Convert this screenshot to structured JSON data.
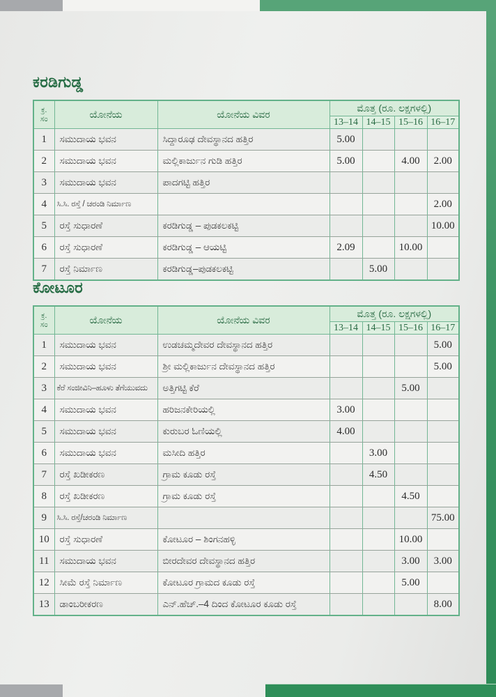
{
  "accents": {
    "top_bar_green": "#57a478",
    "side_band_green": "#2e8c58",
    "bottom_bar_green": "#2f8e59",
    "corner_gray": "#a7a9ac",
    "table_border_green": "#72b694",
    "table_header_bg": "#d8ecdb",
    "heading_text_green": "#266c44"
  },
  "sections": [
    {
      "id": "karadigudda",
      "heading": "ಕರಡಿಗುಡ್ಡ",
      "table": {
        "header": {
          "sl_line1": "ಕ್ರ.",
          "sl_line2": "ಸಂ",
          "scheme": "ಯೋನೆಯ",
          "details": "ಯೋನೆಯ ವಿವರ",
          "amount": "ಮೊತ್ತ (ರೂ. ಲಕ್ಷಗಳಲ್ಲಿ)",
          "years": [
            "13–14",
            "14–15",
            "15–16",
            "16–17"
          ]
        },
        "rows": [
          {
            "no": "1",
            "scheme": "ಸಮುದಾಯ ಭವನ",
            "details": "ಸಿದ್ದಾರೂಢ ದೇವಸ್ಥಾನದ ಹತ್ತಿರ",
            "values": [
              "5.00",
              "",
              "",
              ""
            ]
          },
          {
            "no": "2",
            "scheme": "ಸಮುದಾಯ ಭವನ",
            "details": "ಮಲ್ಲಿಕಾರ್ಜುನ ಗುಡಿ ಹತ್ತಿರ",
            "values": [
              "5.00",
              "",
              "4.00",
              "2.00"
            ]
          },
          {
            "no": "3",
            "scheme": "ಸಮುದಾಯ ಭವನ",
            "details": "ಪಾದಗಟ್ಟಿ ಹತ್ತಿರ",
            "values": [
              "",
              "",
              "",
              ""
            ]
          },
          {
            "no": "4",
            "scheme": "ಸಿ.ಸಿ. ರಸ್ತೆ / ಚರಂಡಿ ನಿರ್ಮಾಣ",
            "details": "",
            "values": [
              "",
              "",
              "",
              "2.00"
            ]
          },
          {
            "no": "5",
            "scheme": "ರಸ್ತೆ ಸುಧಾರಣೆ",
            "details": "ಕರಡಿಗುಡ್ಡ – ಪುಡಕಲಕಟ್ಟಿ",
            "values": [
              "",
              "",
              "",
              "10.00"
            ]
          },
          {
            "no": "6",
            "scheme": "ರಸ್ತೆ ಸುಧಾರಣೆ",
            "details": "ಕರಡಿಗುಡ್ಡ – ಆಯಟ್ಟಿ",
            "values": [
              "2.09",
              "",
              "10.00",
              ""
            ]
          },
          {
            "no": "7",
            "scheme": "ರಸ್ತೆ ನಿರ್ಮಾಣ",
            "details": "ಕರಡಿಗುಡ್ಡ–ಪುಡಕಲಕಟ್ಟಿ",
            "values": [
              "",
              "5.00",
              "",
              ""
            ]
          }
        ]
      }
    },
    {
      "id": "kotur",
      "heading": "ಕೋಟೂರ",
      "table": {
        "header": {
          "sl_line1": "ಕ್ರ.",
          "sl_line2": "ಸಂ",
          "scheme": "ಯೋನೆಯ",
          "details": "ಯೋನೆಯ ವಿವರ",
          "amount": "ಮೊತ್ತ (ರೂ. ಲಕ್ಷಗಳಲ್ಲಿ)",
          "years": [
            "13–14",
            "14–15",
            "15–16",
            "16–17"
          ]
        },
        "rows": [
          {
            "no": "1",
            "scheme": "ಸಮುದಾಯ ಭವನ",
            "details": "ಉಡಚಮ್ಮದೇವರ ದೇವಸ್ಥಾನದ ಹತ್ತಿರ",
            "values": [
              "",
              "",
              "",
              "5.00"
            ]
          },
          {
            "no": "2",
            "scheme": "ಸಮುದಾಯ ಭವನ",
            "details": "ಶ್ರೀ ಮಲ್ಲಿಕಾರ್ಜುನ ದೇವಸ್ಥಾನದ ಹತ್ತಿರ",
            "values": [
              "",
              "",
              "",
              "5.00"
            ]
          },
          {
            "no": "3",
            "scheme": "ಕೆರೆ ಸಂಜೀವಿನಿ–ಹೂಳು ತೆಗೆಯುವದು",
            "details": "ಅತ್ತಿಗಟ್ಟಿ ಕೆರೆ",
            "values": [
              "",
              "",
              "5.00",
              ""
            ]
          },
          {
            "no": "4",
            "scheme": "ಸಮುದಾಯ ಭವನ",
            "details": "ಹರಿಜನಕೇರಿಯಲ್ಲಿ",
            "values": [
              "3.00",
              "",
              "",
              ""
            ]
          },
          {
            "no": "5",
            "scheme": "ಸಮುದಾಯ ಭವನ",
            "details": "ಕುರುಬರ ಓಣಿಯಲ್ಲಿ",
            "values": [
              "4.00",
              "",
              "",
              ""
            ]
          },
          {
            "no": "6",
            "scheme": "ಸಮುದಾಯ ಭವನ",
            "details": "ಮಸೀದಿ ಹತ್ತಿರ",
            "values": [
              "",
              "3.00",
              "",
              ""
            ]
          },
          {
            "no": "7",
            "scheme": "ರಸ್ತೆ ಖಡೀಕರಣ",
            "details": "ಗ್ರಾಮ ಕೂಡು ರಸ್ತೆ",
            "values": [
              "",
              "4.50",
              "",
              ""
            ]
          },
          {
            "no": "8",
            "scheme": "ರಸ್ತೆ ಖಡೀಕರಣ",
            "details": "ಗ್ರಾಮ ಕೂಡು ರಸ್ತೆ",
            "values": [
              "",
              "",
              "4.50",
              ""
            ]
          },
          {
            "no": "9",
            "scheme": "ಸಿ.ಸಿ. ರಸ್ತೆ/ಚರಂಡಿ ನಿರ್ಮಾಣ",
            "details": "",
            "values": [
              "",
              "",
              "",
              "75.00"
            ]
          },
          {
            "no": "10",
            "scheme": "ರಸ್ತೆ ಸುಧಾರಣೆ",
            "details": "ಕೋಟೂರ – ಶಿಂಗನಹಳ್ಳಿ",
            "values": [
              "",
              "",
              "10.00",
              ""
            ]
          },
          {
            "no": "11",
            "scheme": "ಸಮುದಾಯ ಭವನ",
            "details": "ಬೀರದೇವರ ದೇವಸ್ಥಾನದ ಹತ್ತಿರ",
            "values": [
              "",
              "",
              "3.00",
              "3.00"
            ]
          },
          {
            "no": "12",
            "scheme": "ಸೀಮೆ ರಸ್ತೆ ನಿರ್ಮಾಣ",
            "details": "ಕೋಟೂರ ಗ್ರಾಮದ ಕೂಡು ರಸ್ತೆ",
            "values": [
              "",
              "",
              "5.00",
              ""
            ]
          },
          {
            "no": "13",
            "scheme": "ಡಾಂಬರೀಕರಣ",
            "details": "ಎನ್.ಹೆಚ್.–4 ದಿಂದ ಕೋಟೂರ ಕೂಡು ರಸ್ತೆ",
            "values": [
              "",
              "",
              "",
              "8.00"
            ]
          }
        ]
      }
    }
  ]
}
